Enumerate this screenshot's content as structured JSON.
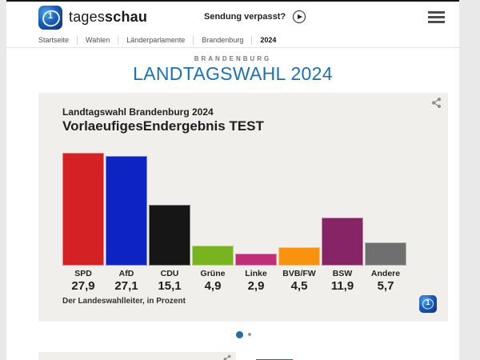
{
  "header": {
    "brand": {
      "light": "tages",
      "bold": "schau"
    },
    "watch_label": "Sendung verpasst?"
  },
  "breadcrumb": {
    "items": [
      "Startseite",
      "Wahlen",
      "Länderparlamente",
      "Brandenburg",
      "2024"
    ]
  },
  "page": {
    "kicker": "BRANDENBURG",
    "title": "LANDTAGSWAHL 2024",
    "title_color": "#1c70b5"
  },
  "chart_card": {
    "title": "Landtagswahl Brandenburg 2024",
    "subtitle": "VorlaeufigesEndergebnis TEST",
    "source": "Der Landeswahlleiter, in Prozent"
  },
  "chart_data": {
    "type": "bar",
    "title": "Landtagswahl Brandenburg 2024",
    "subtitle": "VorlaeufigesEndergebnis TEST",
    "categories": [
      "SPD",
      "AfD",
      "CDU",
      "Grüne",
      "Linke",
      "BVB/FW",
      "BSW",
      "Andere"
    ],
    "values": [
      27.9,
      27.1,
      15.1,
      4.9,
      2.9,
      4.5,
      11.9,
      5.7
    ],
    "value_labels": [
      "27,9",
      "27,1",
      "15,1",
      "4,9",
      "2,9",
      "4,5",
      "11,9",
      "5,7"
    ],
    "bar_colors": [
      "#d42123",
      "#0e23c3",
      "#161616",
      "#77b41d",
      "#c02e78",
      "#f9920f",
      "#862465",
      "#6f6f6f"
    ],
    "unit": "Prozent",
    "xlabel": "",
    "ylabel": "",
    "ylim": [
      0,
      28.5
    ],
    "grid": false,
    "legend": false,
    "source": "Der Landeswahlleiter, in Prozent"
  },
  "carousel": {
    "dot_count": 2,
    "active_index": 0,
    "active_color": "#1d6fb0",
    "inactive_color": "#9a9a9a"
  }
}
